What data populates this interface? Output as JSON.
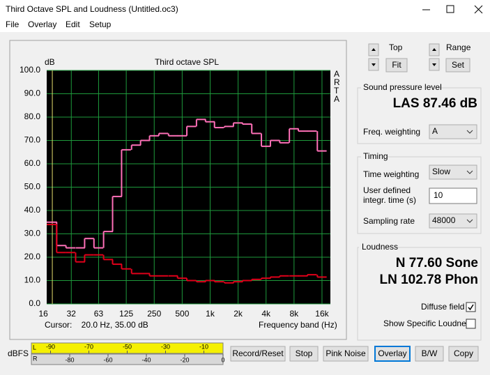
{
  "window": {
    "title": "Third Octave SPL and Loudness (Untitled.oc3)"
  },
  "menu": [
    "File",
    "Overlay",
    "Edit",
    "Setup"
  ],
  "chart_data": {
    "type": "line",
    "step": true,
    "title": "Third octave SPL",
    "y_unit": "dB",
    "side_label": "ARTA",
    "x_label": "Frequency band (Hz)",
    "cursor": "Cursor:    20.0 Hz, 35.00 dB",
    "cursor_x": 20,
    "xscale": "log",
    "xlim": [
      17.4,
      19700
    ],
    "ylim": [
      0,
      100
    ],
    "grid": true,
    "background": "#000000",
    "grid_color": "#1e9a3c",
    "cursor_color": "#e8e070",
    "xticks": [
      16,
      32,
      63,
      125,
      250,
      500,
      {
        "value": 1000,
        "label": "1k"
      },
      {
        "value": 2000,
        "label": "2k"
      },
      {
        "value": 4000,
        "label": "4k"
      },
      {
        "value": 8000,
        "label": "8k"
      },
      {
        "value": 16000,
        "label": "16k"
      }
    ],
    "yticks": [
      {
        "value": 0,
        "label": "0.0"
      },
      {
        "value": 10,
        "label": "10.0"
      },
      {
        "value": 20,
        "label": "20.0"
      },
      {
        "value": 30,
        "label": "30.0"
      },
      {
        "value": 40,
        "label": "40.0"
      },
      {
        "value": 50,
        "label": "50.0"
      },
      {
        "value": 60,
        "label": "60.0"
      },
      {
        "value": 70,
        "label": "70.0"
      },
      {
        "value": 80,
        "label": "80.0"
      },
      {
        "value": 90,
        "label": "90.0"
      },
      {
        "value": 100,
        "label": "100.0"
      }
    ],
    "x": [
      16,
      20,
      25,
      31.5,
      40,
      50,
      63,
      80,
      100,
      125,
      160,
      200,
      250,
      315,
      400,
      500,
      630,
      800,
      1000,
      1250,
      1600,
      2000,
      2500,
      3150,
      4000,
      5000,
      6300,
      8000,
      10000,
      12500,
      16000
    ],
    "series": [
      {
        "color": "#ff70b8",
        "values": [
          35,
          35,
          25,
          24,
          24,
          28,
          24,
          31,
          46,
          66,
          68,
          70,
          72,
          73,
          72,
          72,
          76,
          79,
          78,
          75.5,
          76,
          77.5,
          77,
          73,
          67.5,
          70,
          69,
          75,
          74,
          74,
          65.5
        ]
      },
      {
        "color": "#e0001a",
        "values": [
          34,
          34,
          22,
          22,
          18,
          21,
          21,
          19,
          17,
          15,
          13,
          13,
          12,
          12,
          12,
          11,
          10,
          9.5,
          10,
          9.5,
          9,
          9.5,
          10,
          10.5,
          11,
          11.5,
          12,
          12,
          12,
          12.5,
          11.5
        ]
      }
    ]
  },
  "controls": {
    "top": "Top",
    "fit": "Fit",
    "range": "Range",
    "set": "Set"
  },
  "spl": {
    "heading": "Sound pressure level",
    "reading": "LAS 87.46 dB",
    "freq_weighting_label": "Freq. weighting",
    "freq_weighting": "A"
  },
  "timing": {
    "heading": "Timing",
    "time_weighting_label": "Time weighting",
    "time_weighting": "Slow",
    "integr_label": [
      "User defined",
      "integr. time (s)"
    ],
    "integr_time": 10,
    "sampling_rate_label": "Sampling rate",
    "sampling_rate": 48000
  },
  "loudness": {
    "heading": "Loudness",
    "n": "N 77.60 Sone",
    "ln": "LN 102.78 Phon",
    "diffuse_field": "Diffuse field",
    "diffuse_checked": true,
    "show_specific": "Show Specific Loudness",
    "show_specific_checked": false
  },
  "meter": {
    "label": "dBFS",
    "channels": [
      "L",
      "R"
    ],
    "range": [
      -100,
      0
    ],
    "top_ticks": [
      -90,
      -70,
      -50,
      -30,
      -10
    ],
    "bottom_ticks": [
      -80,
      -60,
      -40,
      -20,
      0
    ]
  },
  "buttons": [
    "Record/Reset",
    "Stop",
    "Pink Noise",
    "Overlay",
    "B/W",
    "Copy"
  ]
}
